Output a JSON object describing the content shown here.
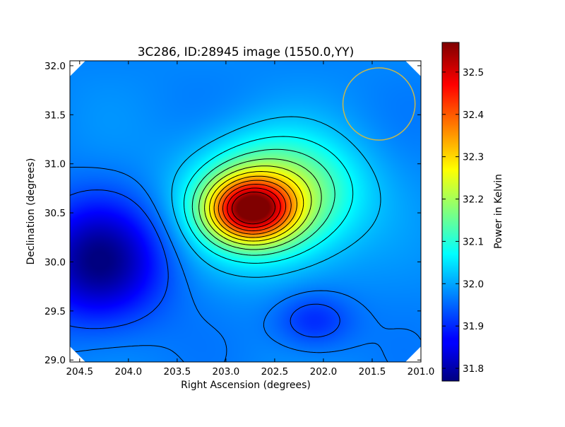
{
  "chart_data": {
    "type": "heatmap",
    "title": "3C286, ID:28945 image (1550.0,YY)",
    "xlabel": "Right Ascension (degrees)",
    "ylabel": "Declination (degrees)",
    "colorbar_label": "Power in Kelvin",
    "xlim": [
      204.6,
      201.0
    ],
    "ylim": [
      28.98,
      32.05
    ],
    "x_ticks": [
      204.5,
      204.0,
      203.5,
      203.0,
      202.5,
      202.0,
      201.5,
      201.0
    ],
    "x_tick_labels": [
      "204.5",
      "204.0",
      "203.5",
      "203.0",
      "202.5",
      "202.0",
      "201.5",
      "201.0"
    ],
    "y_ticks": [
      29.0,
      29.5,
      30.0,
      30.5,
      31.0,
      31.5,
      32.0
    ],
    "y_tick_labels": [
      "29.0",
      "29.5",
      "30.0",
      "30.5",
      "31.0",
      "31.5",
      "32.0"
    ],
    "colorbar_range": [
      31.77,
      32.57
    ],
    "colorbar_ticks": [
      31.8,
      31.9,
      32.0,
      32.1,
      32.2,
      32.3,
      32.4,
      32.5
    ],
    "colorbar_tick_labels": [
      "31.8",
      "31.9",
      "32.0",
      "32.1",
      "32.2",
      "32.3",
      "32.4",
      "32.5"
    ],
    "colormap": "jet",
    "contour_color": "#000000",
    "beam": {
      "ra": 201.43,
      "dec": 31.61,
      "radius_deg": 0.37,
      "color": "#c8b84a"
    },
    "sources": [
      {
        "name": "peak",
        "ra": 202.75,
        "dec": 30.53,
        "peak_K": 32.57,
        "level_K": 31.96
      },
      {
        "name": "trough-west",
        "ra": 204.25,
        "dec": 30.0,
        "min_K": 31.77,
        "level_K": 31.95
      },
      {
        "name": "trough-south",
        "ra": 202.15,
        "dec": 29.4,
        "min_K": 31.85,
        "level_K": 31.95
      }
    ]
  }
}
